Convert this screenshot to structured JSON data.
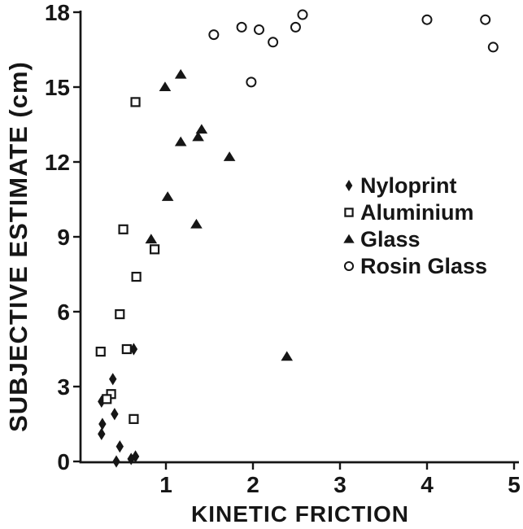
{
  "figure": {
    "background": "#ffffff",
    "ink": "#161616"
  },
  "chart_data": {
    "type": "scatter",
    "title": "",
    "xlabel": "KINETIC FRICTION",
    "ylabel": "SUBJECTIVE ESTIMATE (cm)",
    "xlim": [
      0,
      5
    ],
    "ylim": [
      0,
      18
    ],
    "xticks": [
      1,
      2,
      3,
      4,
      5
    ],
    "yticks": [
      0,
      3,
      6,
      9,
      12,
      15,
      18
    ],
    "grid": false,
    "legend_position": "right-middle",
    "series": [
      {
        "name": "Nyloprint",
        "marker": "filled-diamond",
        "points": [
          [
            0.63,
            4.5
          ],
          [
            0.39,
            3.3
          ],
          [
            0.26,
            2.4
          ],
          [
            0.41,
            1.9
          ],
          [
            0.27,
            1.5
          ],
          [
            0.26,
            1.1
          ],
          [
            0.47,
            0.6
          ],
          [
            0.43,
            0.0
          ],
          [
            0.6,
            0.1
          ],
          [
            0.65,
            0.2
          ]
        ]
      },
      {
        "name": "Aluminium",
        "marker": "open-square",
        "points": [
          [
            0.65,
            14.4
          ],
          [
            0.51,
            9.3
          ],
          [
            0.87,
            8.5
          ],
          [
            0.66,
            7.4
          ],
          [
            0.47,
            5.9
          ],
          [
            0.55,
            4.5
          ],
          [
            0.25,
            4.4
          ],
          [
            0.37,
            2.7
          ],
          [
            0.32,
            2.5
          ],
          [
            0.63,
            1.7
          ]
        ]
      },
      {
        "name": "Glass",
        "marker": "filled-triangle",
        "points": [
          [
            1.17,
            15.5
          ],
          [
            0.99,
            15.0
          ],
          [
            1.41,
            13.3
          ],
          [
            1.37,
            13.0
          ],
          [
            1.17,
            12.8
          ],
          [
            1.73,
            12.2
          ],
          [
            1.02,
            10.6
          ],
          [
            1.35,
            9.5
          ],
          [
            0.83,
            8.9
          ],
          [
            2.39,
            4.2
          ]
        ]
      },
      {
        "name": "Rosin Glass",
        "marker": "open-circle",
        "points": [
          [
            2.57,
            17.9
          ],
          [
            4.0,
            17.7
          ],
          [
            4.67,
            17.7
          ],
          [
            1.87,
            17.4
          ],
          [
            2.49,
            17.4
          ],
          [
            2.07,
            17.3
          ],
          [
            1.55,
            17.1
          ],
          [
            2.23,
            16.8
          ],
          [
            4.76,
            16.6
          ],
          [
            1.98,
            15.2
          ]
        ]
      }
    ]
  }
}
